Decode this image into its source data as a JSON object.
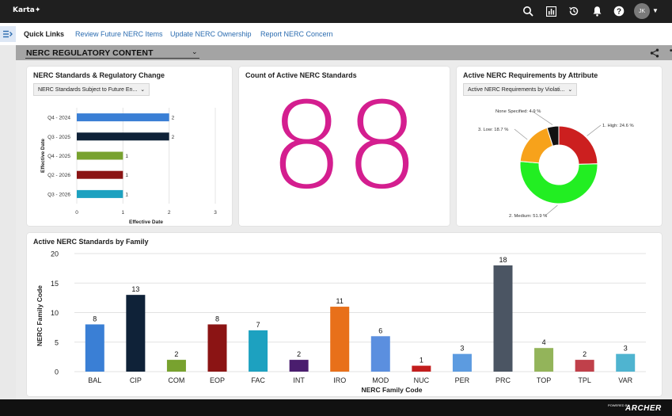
{
  "app": {
    "logo_text": "Karta",
    "user_initials": "JK"
  },
  "topbar": {
    "icons": [
      "search-icon",
      "report-icon",
      "history-icon",
      "bell-icon",
      "help-icon"
    ]
  },
  "quick_links": {
    "title": "Quick Links",
    "items": [
      "Review Future NERC Items",
      "Update NERC Ownership",
      "Report NERC Concern"
    ]
  },
  "content_header": {
    "title": "NERC REGULATORY CONTENT"
  },
  "cards": {
    "regulatory_change": {
      "title": "NERC Standards & Regulatory Change",
      "dropdown": "NERC Standards Subject to Future En..."
    },
    "count": {
      "title": "Count of Active NERC Standards",
      "value": "88"
    },
    "attribute": {
      "title": "Active NERC Requirements by Attribute",
      "dropdown": "Active NERC Requirements by Violati..."
    },
    "family": {
      "title": "Active NERC Standards by Family"
    }
  },
  "chart_data": [
    {
      "type": "bar",
      "orientation": "horizontal",
      "title": "NERC Standards & Regulatory Change",
      "categories": [
        "Q4 - 2024",
        "Q3 - 2025",
        "Q4 - 2025",
        "Q2 - 2026",
        "Q3 - 2026"
      ],
      "values": [
        2,
        2,
        1,
        1,
        1
      ],
      "colors": [
        "#3a7fd5",
        "#0f2238",
        "#78a22f",
        "#8b1414",
        "#1da1c0"
      ],
      "xlabel": "Effective Date",
      "ylabel": "Effective Date",
      "xlim": [
        0,
        3
      ],
      "xticks": [
        0,
        1,
        2,
        3
      ]
    },
    {
      "type": "pie",
      "title": "Active NERC Requirements by Attribute",
      "donut": true,
      "slices": [
        {
          "label": "1. High: 24.6 %",
          "value": 24.6,
          "color": "#cc1f1f"
        },
        {
          "label": "2. Medium: 51.9 %",
          "value": 51.9,
          "color": "#22ee22"
        },
        {
          "label": "3. Low: 18.7 %",
          "value": 18.7,
          "color": "#f7a21b"
        },
        {
          "label": "None Specified: 4.9 %",
          "value": 4.9,
          "color": "#111111"
        }
      ]
    },
    {
      "type": "bar",
      "title": "Active NERC Standards by Family",
      "categories": [
        "BAL",
        "CIP",
        "COM",
        "EOP",
        "FAC",
        "INT",
        "IRO",
        "MOD",
        "NUC",
        "PER",
        "PRC",
        "TOP",
        "TPL",
        "VAR"
      ],
      "values": [
        8,
        13,
        2,
        8,
        7,
        2,
        11,
        6,
        1,
        3,
        18,
        4,
        2,
        3
      ],
      "colors": [
        "#3a7fd5",
        "#0f2238",
        "#78a22f",
        "#8b1414",
        "#1da1c0",
        "#4a1d6e",
        "#e8701a",
        "#5b8fdf",
        "#c21d1d",
        "#5c9be0",
        "#4b5563",
        "#93b45a",
        "#c0404a",
        "#4fb4d0"
      ],
      "xlabel": "NERC Family Code",
      "ylabel": "NERC Family Code",
      "ylim": [
        0,
        20
      ],
      "yticks": [
        0,
        5,
        10,
        15,
        20
      ]
    }
  ]
}
